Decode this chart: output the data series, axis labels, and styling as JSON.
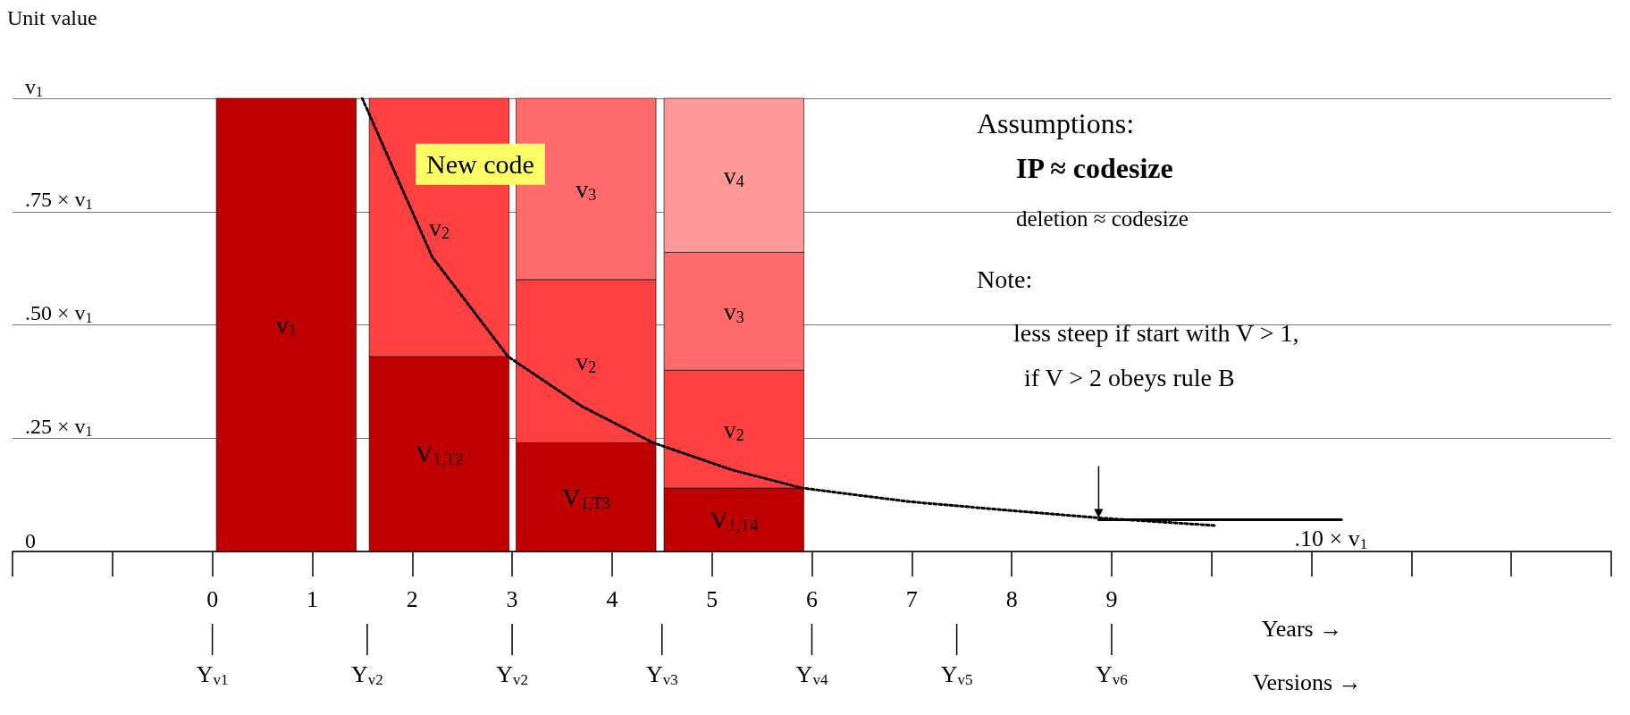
{
  "chart_data": {
    "type": "bar",
    "stacked": true,
    "ylabel": "Unit value",
    "xlabel": "Years →",
    "x2label": "Versions →",
    "x": [
      0.74,
      2.27,
      3.74,
      5.22
    ],
    "series": [
      {
        "name": "v$_{1}$",
        "color": "#c00000",
        "values": [
          1,
          null,
          null,
          null
        ]
      },
      {
        "name": "V$_{1,T2}$",
        "color": "#c00000",
        "values": [
          null,
          0.43,
          null,
          null
        ]
      },
      {
        "name": "V$_{1,T3}$",
        "color": "#c00000",
        "values": [
          null,
          null,
          0.24,
          null
        ]
      },
      {
        "name": "V$_{1,T4}$",
        "color": "#c00000",
        "values": [
          null,
          null,
          null,
          0.14
        ]
      },
      {
        "name": "v$_{2}$",
        "color": "#ff4040",
        "values": [
          null,
          0.57,
          0.36,
          0.26
        ]
      },
      {
        "name": "v$_{3}$",
        "color": "#ff6b6b",
        "values": [
          null,
          null,
          0.4,
          0.26
        ]
      },
      {
        "name": "v$_{4}$",
        "color": "#ff9999",
        "values": [
          null,
          null,
          null,
          0.34
        ]
      },
      {
        "type": "line",
        "line_style": "dotted",
        "color": "#000000",
        "x": [
          1.5,
          2.2,
          2.96,
          3.7,
          4.41,
          5.2,
          5.9,
          6.97,
          8.0,
          8.87,
          10.05
        ],
        "values": [
          1,
          0.65,
          0.43,
          0.32,
          0.24,
          0.18,
          0.14,
          0.11,
          0.09,
          0.074,
          0.057
        ]
      },
      {
        "type": "line",
        "line_style": "solid",
        "color": "#000000",
        "x": [
          8.87,
          11.3
        ],
        "values": [
          0.07,
          0.07
        ]
      }
    ],
    "xlim": [
      -2,
      14
    ],
    "xticks": [
      0,
      1,
      2,
      3,
      4,
      5,
      6,
      7,
      8,
      9
    ],
    "ylim": [
      0,
      1
    ],
    "yticks": [
      0,
      {
        "value": 0.25,
        "label": ".25 × v$_{1}$"
      },
      {
        "value": 0.5,
        "label": ".50 × v$_{1}$"
      },
      {
        "value": 0.75,
        "label": ".75 × v$_{1}$"
      },
      {
        "value": 1,
        "label": "v$_{1}$"
      }
    ],
    "grid": "y",
    "marker": "none",
    "annotations": [
      "New code",
      "Assumptions:",
      "IP ≈ codesize",
      "deletion ≈ codesize",
      "Note:",
      "less steep if start with V > 1,",
      "if V > 2 obeys rule B",
      ".10 × v$_{1}$",
      "Y$_{v1}$",
      "Y$_{v2}$",
      "Y$_{v2}$",
      "Y$_{v3}$",
      "Y$_{v4}$",
      "Y$_{v5}$",
      "Y$_{v6}$"
    ]
  }
}
